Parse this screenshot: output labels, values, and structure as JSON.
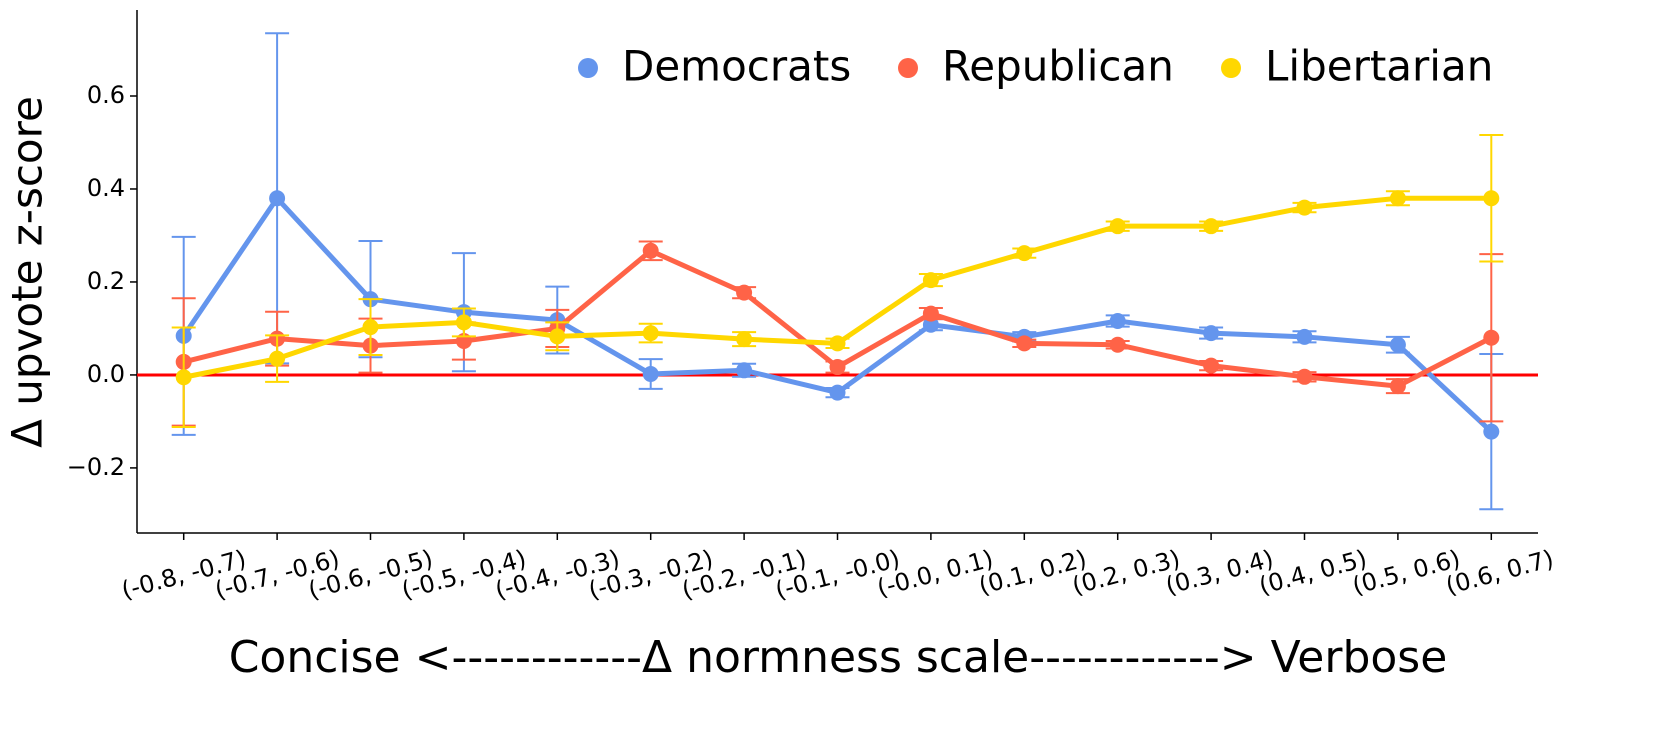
{
  "chart_data": {
    "type": "line",
    "xlabel": "Concise <------------Δ normness scale------------> Verbose",
    "ylabel": "Δ upvote z-score",
    "categories": [
      "(-0.8, -0.7)",
      "(-0.7, -0.6)",
      "(-0.6, -0.5)",
      "(-0.5, -0.4)",
      "(-0.4, -0.3)",
      "(-0.3, -0.2)",
      "(-0.2, -0.1)",
      "(-0.1, -0.0)",
      "(-0.0, 0.1)",
      "(0.1, 0.2)",
      "(0.2, 0.3)",
      "(0.3, 0.4)",
      "(0.4, 0.5)",
      "(0.5, 0.6)",
      "(0.6, 0.7)"
    ],
    "series": [
      {
        "name": "Democrats",
        "color": "#6495ed",
        "values": [
          0.084,
          0.38,
          0.163,
          0.135,
          0.118,
          0.002,
          0.01,
          -0.038,
          0.108,
          0.082,
          0.116,
          0.09,
          0.082,
          0.065,
          -0.122
        ],
        "errors": [
          0.213,
          0.355,
          0.125,
          0.127,
          0.072,
          0.032,
          0.014,
          0.01,
          0.012,
          0.01,
          0.012,
          0.012,
          0.012,
          0.017,
          0.167
        ]
      },
      {
        "name": "Republican",
        "color": "#ff6347",
        "values": [
          0.028,
          0.078,
          0.063,
          0.073,
          0.1,
          0.267,
          0.177,
          0.017,
          0.132,
          0.068,
          0.065,
          0.02,
          -0.004,
          -0.024,
          0.08
        ],
        "errors": [
          0.137,
          0.058,
          0.058,
          0.04,
          0.04,
          0.02,
          0.012,
          0.012,
          0.012,
          0.008,
          0.008,
          0.01,
          0.01,
          0.015,
          0.18
        ]
      },
      {
        "name": "Libertarian",
        "color": "#ffd700",
        "values": [
          -0.005,
          0.035,
          0.103,
          0.113,
          0.083,
          0.09,
          0.077,
          0.068,
          0.204,
          0.262,
          0.32,
          0.32,
          0.36,
          0.38,
          0.38
        ],
        "errors": [
          0.107,
          0.05,
          0.06,
          0.03,
          0.03,
          0.02,
          0.015,
          0.01,
          0.013,
          0.01,
          0.01,
          0.01,
          0.01,
          0.015,
          0.136
        ]
      }
    ],
    "reference_line": {
      "value": 0,
      "color": "#ff0000"
    },
    "ylim": [
      -0.34,
      0.785
    ],
    "yticks": [
      {
        "value": -0.2,
        "label": "−0.2"
      },
      {
        "value": 0,
        "label": "0.0"
      },
      0.2,
      0.4,
      0.6
    ],
    "legend": "upper right"
  }
}
